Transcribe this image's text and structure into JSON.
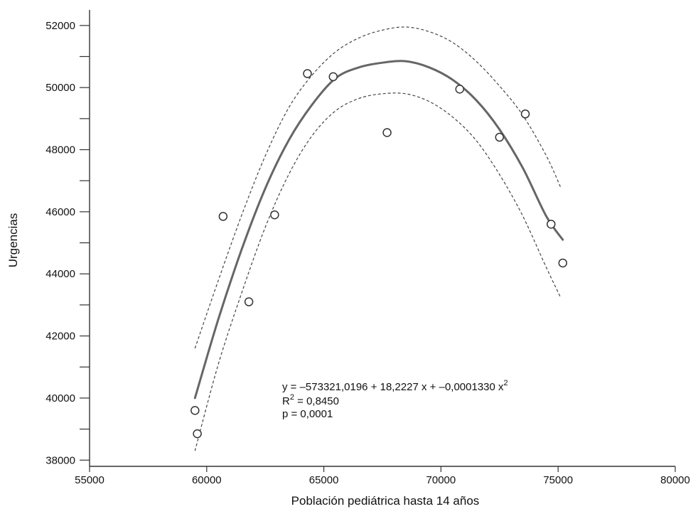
{
  "chart_data": {
    "type": "scatter",
    "xlabel": "Población pediátrica hasta 14 años",
    "ylabel": "Urgencias",
    "xlim": [
      55000,
      80000
    ],
    "ylim": [
      37800,
      52500
    ],
    "x_ticks": [
      55000,
      60000,
      65000,
      70000,
      75000,
      80000
    ],
    "y_ticks": [
      38000,
      40000,
      42000,
      44000,
      46000,
      48000,
      50000,
      52000
    ],
    "y_minor_ticks": [
      39000,
      41000,
      43000,
      45000,
      47000,
      49000,
      51000
    ],
    "grid": false,
    "points": [
      {
        "x": 59500,
        "y": 39600
      },
      {
        "x": 59600,
        "y": 38850
      },
      {
        "x": 60700,
        "y": 45850
      },
      {
        "x": 61800,
        "y": 43100
      },
      {
        "x": 62900,
        "y": 45900
      },
      {
        "x": 64300,
        "y": 50450
      },
      {
        "x": 65400,
        "y": 50350
      },
      {
        "x": 67700,
        "y": 48550
      },
      {
        "x": 70800,
        "y": 49950
      },
      {
        "x": 72500,
        "y": 48400
      },
      {
        "x": 73600,
        "y": 49150
      },
      {
        "x": 74700,
        "y": 45600
      },
      {
        "x": 75200,
        "y": 44350
      }
    ],
    "fit_curve": {
      "x": [
        59500,
        60500,
        61500,
        62500,
        63500,
        64500,
        65500,
        66500,
        67500,
        68500,
        69500,
        70500,
        71500,
        72500,
        73500,
        74500,
        75200
      ],
      "y": [
        40000,
        42550,
        44800,
        46750,
        48300,
        49450,
        50300,
        50650,
        50800,
        50850,
        50650,
        50250,
        49600,
        48650,
        47400,
        45850,
        45100
      ]
    },
    "ci_upper": {
      "x": [
        59500,
        60500,
        61500,
        62500,
        63500,
        64500,
        65500,
        66500,
        67500,
        68500,
        69500,
        70500,
        71500,
        72500,
        73500,
        74500,
        75100
      ],
      "y": [
        41600,
        43800,
        45900,
        47800,
        49350,
        50400,
        51150,
        51600,
        51850,
        51950,
        51800,
        51450,
        50850,
        50050,
        49100,
        47800,
        46800
      ]
    },
    "ci_lower": {
      "x": [
        59500,
        60500,
        61500,
        62500,
        63500,
        64500,
        65500,
        66500,
        67500,
        68500,
        69500,
        70500,
        71500,
        72500,
        73500,
        74500,
        75100
      ],
      "y": [
        38300,
        41100,
        43400,
        45500,
        47200,
        48450,
        49250,
        49650,
        49800,
        49800,
        49550,
        49050,
        48300,
        47200,
        45850,
        44200,
        43250
      ]
    },
    "annotation": {
      "eq_prefix": "y = –573321,0196 + 18,2227 x + –0,0001330 x",
      "eq_exp": "2",
      "r2_label": "R",
      "r2_exp": "2",
      "r2_value": " = 0,8450",
      "p_text": "p = 0,0001"
    }
  }
}
